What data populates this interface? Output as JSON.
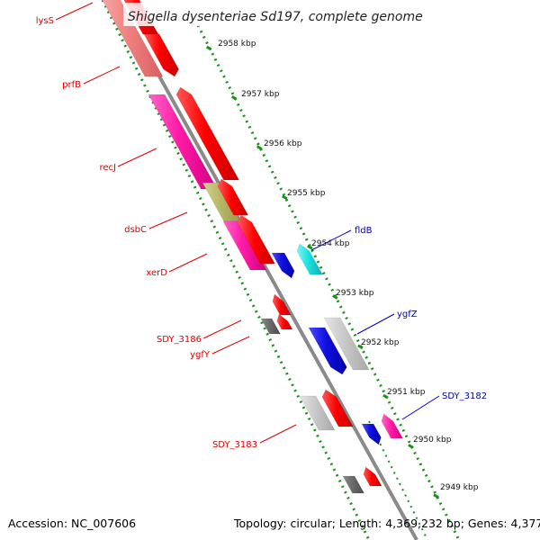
{
  "title": "Shigella dysenteriae Sd197, complete genome",
  "footer": {
    "accession": "Accession: NC_007606",
    "topology": "Topology: circular; Length: 4,369,232 bp; Genes: 4,377"
  },
  "colors": {
    "backbone": "#8a8a8a",
    "tick": "#1a8f1a",
    "left_label": "#dd0000",
    "right_label": "#0000bb",
    "red": "#ff0000",
    "magenta": "#ff1aa6",
    "pink": "#f08080",
    "olive": "#b8b86a",
    "blue": "#1010e0",
    "cyan": "#18e0e0",
    "light_gray": "#c8c8c8",
    "dark_gray": "#6a6a6a"
  },
  "scale_labels": [
    "2958 kbp",
    "2957 kbp",
    "2956 kbp",
    "2955 kbp",
    "2954 kbp",
    "2953 kbp",
    "2952 kbp",
    "2951 kbp",
    "2950 kbp",
    "2949 kbp"
  ],
  "left_labels": [
    "lysS",
    "prfB",
    "recJ",
    "dsbC",
    "xerD",
    "SDY_3186",
    "ygfY",
    "SDY_3183"
  ],
  "right_labels": [
    "fldB",
    "ygfZ",
    "SDY_3182"
  ]
}
